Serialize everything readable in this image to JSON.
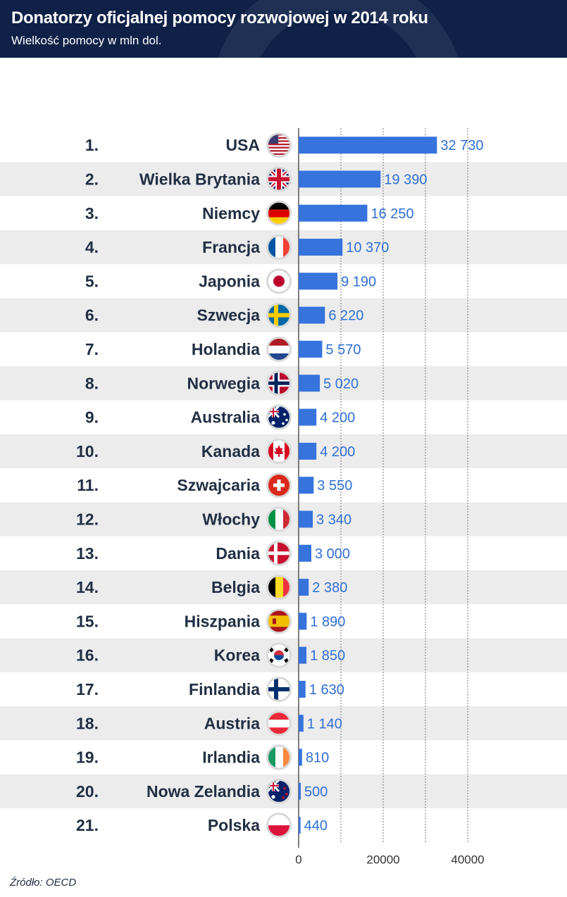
{
  "header": {
    "title": "Donatorzy oficjalnej pomocy rozwojowej w 2014 roku",
    "subtitle": "Wielkość pomocy w mln dol."
  },
  "source": "Źródło: OECD",
  "colors": {
    "bar": "#3673dc",
    "header_bg": "#0f2147",
    "stripe": "#ececec",
    "text": "#222f43"
  },
  "chart_data": {
    "type": "bar",
    "orientation": "horizontal",
    "title": "Donatorzy oficjalnej pomocy rozwojowej w 2014 roku",
    "subtitle": "Wielkość pomocy w mln dol.",
    "xlim": [
      0,
      50000
    ],
    "x_ticks": [
      "0",
      "20000",
      "40000"
    ],
    "grid": true,
    "rows": [
      {
        "rank": "1.",
        "country": "USA",
        "value": 32730,
        "label": "32 730",
        "flag": "flag-us"
      },
      {
        "rank": "2.",
        "country": "Wielka Brytania",
        "value": 19390,
        "label": "19 390",
        "flag": "flag-uk"
      },
      {
        "rank": "3.",
        "country": "Niemcy",
        "value": 16250,
        "label": "16 250",
        "flag": "flag-de"
      },
      {
        "rank": "4.",
        "country": "Francja",
        "value": 10370,
        "label": "10 370",
        "flag": "flag-fr"
      },
      {
        "rank": "5.",
        "country": "Japonia",
        "value": 9190,
        "label": "9 190",
        "flag": "flag-jp"
      },
      {
        "rank": "6.",
        "country": "Szwecja",
        "value": 6220,
        "label": "6 220",
        "flag": "flag-se"
      },
      {
        "rank": "7.",
        "country": "Holandia",
        "value": 5570,
        "label": "5 570",
        "flag": "flag-nl"
      },
      {
        "rank": "8.",
        "country": "Norwegia",
        "value": 5020,
        "label": "5 020",
        "flag": "flag-no"
      },
      {
        "rank": "9.",
        "country": "Australia",
        "value": 4200,
        "label": "4 200",
        "flag": "flag-au"
      },
      {
        "rank": "10.",
        "country": "Kanada",
        "value": 4200,
        "label": "4 200",
        "flag": "flag-ca"
      },
      {
        "rank": "11.",
        "country": "Szwajcaria",
        "value": 3550,
        "label": "3 550",
        "flag": "flag-ch"
      },
      {
        "rank": "12.",
        "country": "Włochy",
        "value": 3340,
        "label": "3 340",
        "flag": "flag-it"
      },
      {
        "rank": "13.",
        "country": "Dania",
        "value": 3000,
        "label": "3 000",
        "flag": "flag-dk"
      },
      {
        "rank": "14.",
        "country": "Belgia",
        "value": 2380,
        "label": "2 380",
        "flag": "flag-be"
      },
      {
        "rank": "15.",
        "country": "Hiszpania",
        "value": 1890,
        "label": "1 890",
        "flag": "flag-es"
      },
      {
        "rank": "16.",
        "country": "Korea",
        "value": 1850,
        "label": "1 850",
        "flag": "flag-kr"
      },
      {
        "rank": "17.",
        "country": "Finlandia",
        "value": 1630,
        "label": "1 630",
        "flag": "flag-fi"
      },
      {
        "rank": "18.",
        "country": "Austria",
        "value": 1140,
        "label": "1 140",
        "flag": "flag-at"
      },
      {
        "rank": "19.",
        "country": "Irlandia",
        "value": 810,
        "label": "810",
        "flag": "flag-ie"
      },
      {
        "rank": "20.",
        "country": "Nowa Zelandia",
        "value": 500,
        "label": "500",
        "flag": "flag-nz"
      },
      {
        "rank": "21.",
        "country": "Polska",
        "value": 440,
        "label": "440",
        "flag": "flag-pl"
      }
    ]
  }
}
